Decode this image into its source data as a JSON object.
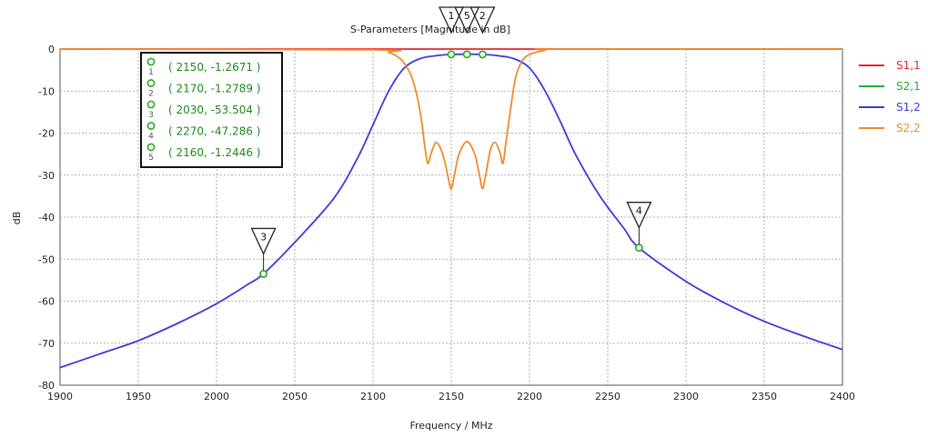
{
  "chart_data": {
    "type": "line",
    "title": "S-Parameters [Magnitude in dB]",
    "xlabel": "Frequency / MHz",
    "ylabel": "dB",
    "xlim": [
      1900,
      2400
    ],
    "ylim": [
      -80,
      0
    ],
    "xticks": [
      1900,
      1950,
      2000,
      2050,
      2100,
      2150,
      2200,
      2250,
      2300,
      2350,
      2400
    ],
    "yticks": [
      0,
      -10,
      -20,
      -30,
      -40,
      -50,
      -60,
      -70,
      -80
    ],
    "grid": true,
    "legend_position": "right",
    "series": [
      {
        "name": "S1,1",
        "color": "#e8232a",
        "points": [
          [
            1900,
            0
          ],
          [
            2400,
            0
          ]
        ]
      },
      {
        "name": "S2,1",
        "color": "#22b02a",
        "points": []
      },
      {
        "name": "S1,2",
        "color": "#3a3ae0",
        "points": [
          [
            1900,
            -75.8
          ],
          [
            1925,
            -72.6
          ],
          [
            1950,
            -69.4
          ],
          [
            1975,
            -65.3
          ],
          [
            2000,
            -60.6
          ],
          [
            2020,
            -56
          ],
          [
            2030,
            -53.5
          ],
          [
            2050,
            -46
          ],
          [
            2075,
            -35.5
          ],
          [
            2090,
            -26
          ],
          [
            2100,
            -18
          ],
          [
            2110,
            -10
          ],
          [
            2120,
            -4.5
          ],
          [
            2130,
            -2.3
          ],
          [
            2140,
            -1.6
          ],
          [
            2150,
            -1.27
          ],
          [
            2160,
            -1.24
          ],
          [
            2170,
            -1.28
          ],
          [
            2180,
            -1.6
          ],
          [
            2190,
            -2.3
          ],
          [
            2200,
            -4.5
          ],
          [
            2210,
            -10
          ],
          [
            2220,
            -17.5
          ],
          [
            2230,
            -25.5
          ],
          [
            2245,
            -35
          ],
          [
            2260,
            -42.5
          ],
          [
            2270,
            -47.3
          ],
          [
            2300,
            -55.3
          ],
          [
            2325,
            -60.5
          ],
          [
            2350,
            -64.8
          ],
          [
            2375,
            -68.3
          ],
          [
            2400,
            -71.5
          ]
        ]
      },
      {
        "name": "S2,2",
        "color": "#f08a2a",
        "points": [
          [
            1900,
            0
          ],
          [
            2100,
            -0.2
          ],
          [
            2110,
            -0.8
          ],
          [
            2118,
            -2.5
          ],
          [
            2124,
            -6
          ],
          [
            2128,
            -11
          ],
          [
            2131,
            -17
          ],
          [
            2133,
            -23
          ],
          [
            2135,
            -27.2
          ],
          [
            2137,
            -25
          ],
          [
            2140,
            -22.3
          ],
          [
            2143,
            -23.5
          ],
          [
            2146,
            -27
          ],
          [
            2148,
            -30.5
          ],
          [
            2150,
            -33.3
          ],
          [
            2152,
            -30
          ],
          [
            2155,
            -25
          ],
          [
            2160,
            -22
          ],
          [
            2165,
            -25
          ],
          [
            2168,
            -30
          ],
          [
            2170,
            -33.2
          ],
          [
            2172,
            -30
          ],
          [
            2175,
            -24
          ],
          [
            2178,
            -22.2
          ],
          [
            2181,
            -24.5
          ],
          [
            2183,
            -27.2
          ],
          [
            2185,
            -22
          ],
          [
            2188,
            -14
          ],
          [
            2191,
            -7
          ],
          [
            2195,
            -3
          ],
          [
            2200,
            -1.3
          ],
          [
            2210,
            -0.3
          ],
          [
            2220,
            0
          ],
          [
            2400,
            0
          ]
        ]
      }
    ],
    "markers": [
      {
        "id": "1",
        "x": 2150,
        "y": -1.2671,
        "text": "( 2150, -1.2671 )"
      },
      {
        "id": "2",
        "x": 2170,
        "y": -1.2789,
        "text": "( 2170, -1.2789 )"
      },
      {
        "id": "3",
        "x": 2030,
        "y": -53.504,
        "text": "( 2030, -53.504 )"
      },
      {
        "id": "4",
        "x": 2270,
        "y": -47.286,
        "text": "( 2270, -47.286 )"
      },
      {
        "id": "5",
        "x": 2160,
        "y": -1.2446,
        "text": "( 2160, -1.2446 )"
      }
    ]
  }
}
